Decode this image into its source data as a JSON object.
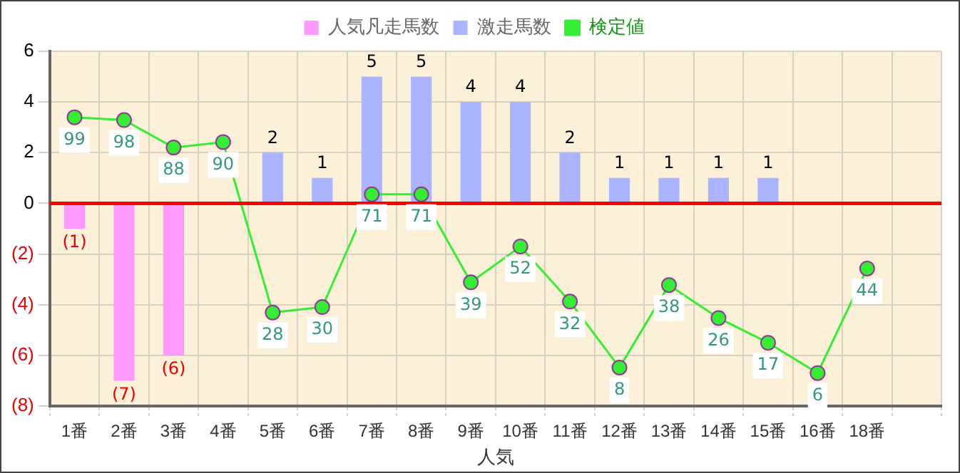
{
  "chart_data": {
    "type": "bar",
    "xlabel": "人気",
    "categories": [
      "1番",
      "2番",
      "3番",
      "4番",
      "5番",
      "6番",
      "7番",
      "8番",
      "9番",
      "10番",
      "11番",
      "12番",
      "13番",
      "14番",
      "15番",
      "16番",
      "18番",
      null
    ],
    "series": [
      {
        "name": "人気凡走馬数",
        "color": "#ff99ff",
        "values": [
          -1,
          -7,
          -6,
          null,
          null,
          null,
          null,
          null,
          null,
          null,
          null,
          null,
          null,
          null,
          null,
          null,
          null,
          null
        ],
        "value_labels": [
          "(1)",
          "(7)",
          "(6)",
          null,
          null,
          null,
          null,
          null,
          null,
          null,
          null,
          null,
          null,
          null,
          null,
          null,
          null,
          null
        ]
      },
      {
        "name": "激走馬数",
        "color": "#aab4ff",
        "values": [
          null,
          null,
          null,
          null,
          2,
          1,
          5,
          5,
          4,
          4,
          2,
          1,
          1,
          1,
          1,
          null,
          null,
          null
        ],
        "value_labels": [
          null,
          null,
          null,
          null,
          "2",
          "1",
          "5",
          "5",
          "4",
          "4",
          "2",
          "1",
          "1",
          "1",
          "1",
          null,
          null,
          null
        ]
      },
      {
        "name": "検定値",
        "type": "line",
        "axis": "y2",
        "color": "#33ee33",
        "marker": "circle",
        "values": [
          99,
          98,
          88,
          90,
          28,
          30,
          71,
          71,
          39,
          52,
          32,
          8,
          38,
          26,
          17,
          6,
          44,
          null
        ],
        "value_labels": [
          "99",
          "98",
          "88",
          "90",
          "28",
          "30",
          "71",
          "71",
          "39",
          "52",
          "32",
          "8",
          "38",
          "26",
          "17",
          "6",
          "44",
          null
        ]
      }
    ],
    "ylim": [
      -8,
      6
    ],
    "yticks": [
      {
        "value": -8,
        "label": "(8)"
      },
      {
        "value": -6,
        "label": "(6)"
      },
      {
        "value": -4,
        "label": "(4)"
      },
      {
        "value": -2,
        "label": "(2)"
      },
      0,
      2,
      4,
      6
    ],
    "y2lim": [
      -6,
      123
    ],
    "ref_lines": [
      {
        "axis": "y",
        "value": 0,
        "color": "#ff0000"
      }
    ],
    "grid": true,
    "legend": "top"
  }
}
